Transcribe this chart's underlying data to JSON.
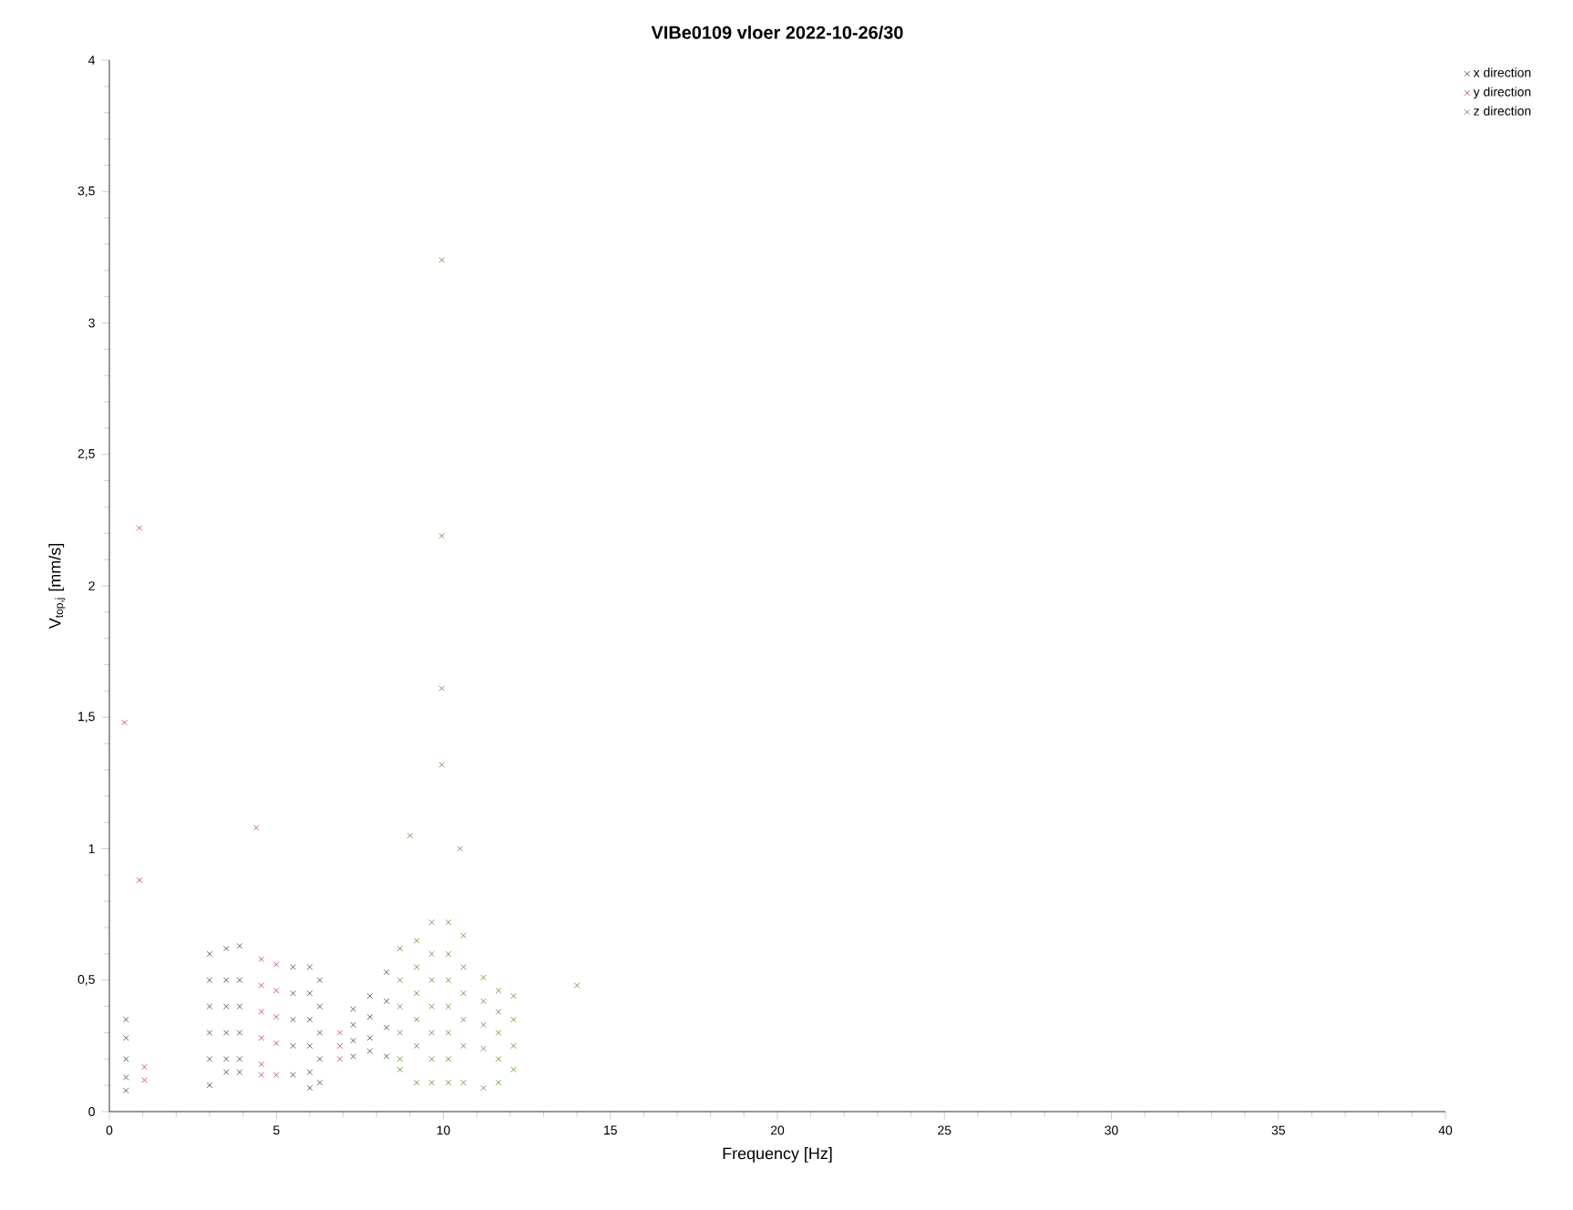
{
  "chart_data": {
    "type": "scatter",
    "title": "VIBe0109 vloer 2022-10-26/30",
    "xlabel": "Frequency [Hz]",
    "ylabel": "V$_{top,j}$ [mm/s]",
    "xlim": [
      0,
      40
    ],
    "xticks": [
      0,
      5,
      10,
      15,
      20,
      25,
      30,
      35,
      40
    ],
    "ylim": [
      0,
      4
    ],
    "yticks": [
      0,
      {
        "value": 0.5,
        "label": "0,5"
      },
      1,
      {
        "value": 1.5,
        "label": "1,5"
      },
      2,
      {
        "value": 2.5,
        "label": "2,5"
      },
      3,
      {
        "value": 3.5,
        "label": "3,5"
      },
      4
    ],
    "marker": "cross",
    "grid": false,
    "legend": "top right",
    "series": [
      {
        "name": "x direction",
        "color": "#2e4a3e",
        "x": [
          0.5,
          0.5,
          0.5,
          0.5,
          0.5,
          3,
          3,
          3,
          3,
          3,
          3,
          3.5,
          3.5,
          3.5,
          3.5,
          3.5,
          3.5,
          3.9,
          3.9,
          3.9,
          3.9,
          3.9,
          3.9,
          5.5,
          5.5,
          5.5,
          5.5,
          5.5,
          6,
          6,
          6,
          6,
          6,
          6,
          6.3,
          6.3,
          6.3,
          6.3,
          6.3,
          7.3,
          7.3,
          7.3,
          7.3,
          7.8,
          7.8,
          7.8,
          7.8,
          8.3,
          8.3,
          8.3,
          8.3
        ],
        "values": [
          0.35,
          0.28,
          0.2,
          0.13,
          0.08,
          0.6,
          0.5,
          0.4,
          0.3,
          0.2,
          0.1,
          0.62,
          0.5,
          0.4,
          0.3,
          0.2,
          0.15,
          0.63,
          0.5,
          0.4,
          0.3,
          0.2,
          0.15,
          0.55,
          0.45,
          0.35,
          0.25,
          0.14,
          0.55,
          0.45,
          0.35,
          0.25,
          0.15,
          0.09,
          0.5,
          0.4,
          0.3,
          0.2,
          0.11,
          0.39,
          0.33,
          0.27,
          0.21,
          0.44,
          0.36,
          0.28,
          0.23,
          0.53,
          0.42,
          0.32,
          0.21
        ]
      },
      {
        "name": "y direction",
        "color": "#c8325a",
        "x": [
          1.05,
          1.05,
          4.55,
          4.55,
          4.55,
          4.55,
          4.55,
          4.55,
          5,
          5,
          5,
          5,
          5,
          6.9,
          6.9,
          6.9,
          0.9,
          0.45,
          0.9,
          4.4
        ],
        "values": [
          0.17,
          0.12,
          0.58,
          0.48,
          0.38,
          0.28,
          0.18,
          0.14,
          0.56,
          0.46,
          0.36,
          0.26,
          0.14,
          0.3,
          0.25,
          0.2,
          2.22,
          1.48,
          0.88,
          1.08
        ]
      },
      {
        "name": "z direction",
        "color": "#4a8a2a",
        "x": [
          8.7,
          8.7,
          8.7,
          8.7,
          8.7,
          8.7,
          9.2,
          9.2,
          9.2,
          9.2,
          9.2,
          9.2,
          9.65,
          9.65,
          9.65,
          9.65,
          9.65,
          9.65,
          9.65,
          10.15,
          10.15,
          10.15,
          10.15,
          10.15,
          10.15,
          10.15,
          10.6,
          10.6,
          10.6,
          10.6,
          10.6,
          10.6,
          11.2,
          11.2,
          11.2,
          11.2,
          11.2,
          11.65,
          11.65,
          11.65,
          11.65,
          11.65,
          12.1,
          12.1,
          12.1,
          12.1,
          9.95,
          9.95,
          9.95,
          9.95,
          14,
          10.5,
          9
        ],
        "values": [
          0.62,
          0.5,
          0.4,
          0.3,
          0.2,
          0.16,
          0.65,
          0.55,
          0.45,
          0.35,
          0.25,
          0.11,
          0.72,
          0.6,
          0.5,
          0.4,
          0.3,
          0.2,
          0.11,
          0.72,
          0.6,
          0.5,
          0.4,
          0.3,
          0.2,
          0.11,
          0.67,
          0.55,
          0.45,
          0.35,
          0.25,
          0.11,
          0.51,
          0.42,
          0.33,
          0.24,
          0.09,
          0.46,
          0.38,
          0.3,
          0.2,
          0.11,
          0.44,
          0.35,
          0.25,
          0.16,
          3.24,
          2.19,
          1.61,
          1.32,
          0.48,
          1.0,
          1.05
        ]
      }
    ]
  }
}
